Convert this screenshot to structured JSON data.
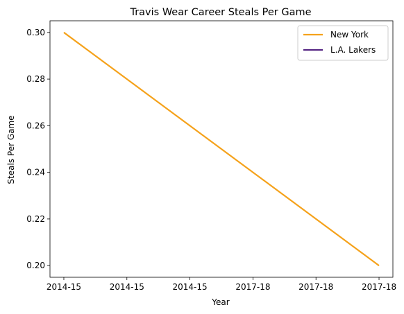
{
  "chart_data": {
    "type": "line",
    "title": "Travis Wear Career Steals Per Game",
    "xlabel": "Year",
    "ylabel": "Steals Per Game",
    "x_ticks": [
      "2014-15",
      "2014-15",
      "2014-15",
      "2017-18",
      "2017-18",
      "2017-18"
    ],
    "ylim": [
      0.195,
      0.305
    ],
    "y_ticks": [
      "0.20",
      "0.22",
      "0.24",
      "0.26",
      "0.28",
      "0.30"
    ],
    "grid": false,
    "legend_position": "top-right",
    "series": [
      {
        "name": "New York",
        "color": "#f5a21b",
        "x": [
          0,
          5
        ],
        "values": [
          0.3,
          0.2
        ]
      },
      {
        "name": "L.A. Lakers",
        "color": "#552583",
        "x": [],
        "values": []
      }
    ]
  }
}
